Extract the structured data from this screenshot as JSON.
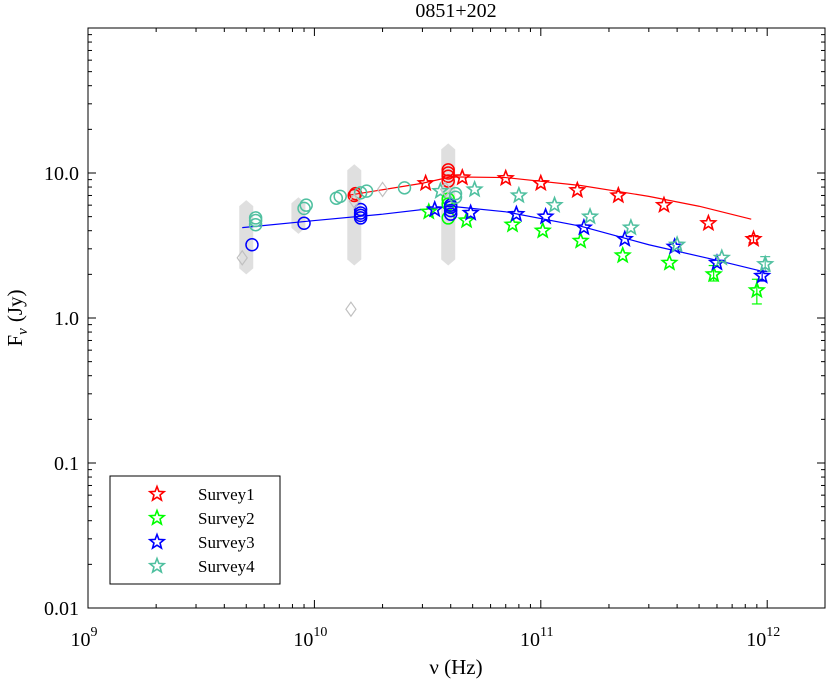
{
  "chart_data": {
    "type": "scatter",
    "title": "0851+202",
    "xlabel": "ν (Hz)",
    "ylabel": "F_ν (Jy)",
    "ylabel_main": "F",
    "ylabel_sub": "ν",
    "ylabel_unit": "(Jy)",
    "x_scale": "log",
    "y_scale": "log",
    "xlim": [
      1000000000.0,
      1800000000000.0
    ],
    "ylim": [
      0.01,
      100
    ],
    "x_ticks": [
      {
        "value": 1000000000.0,
        "base": "10",
        "exp": "9"
      },
      {
        "value": 10000000000.0,
        "base": "10",
        "exp": "10"
      },
      {
        "value": 100000000000.0,
        "base": "10",
        "exp": "11"
      },
      {
        "value": 1000000000000.0,
        "base": "10",
        "exp": "12"
      }
    ],
    "y_ticks": [
      {
        "value": 0.01,
        "label": "0.01"
      },
      {
        "value": 0.1,
        "label": "0.1"
      },
      {
        "value": 1,
        "label": "1.0"
      },
      {
        "value": 10,
        "label": "10.0"
      }
    ],
    "legend": {
      "position": "bottom-left",
      "entries": [
        {
          "name": "Survey1",
          "color": "#ff0000"
        },
        {
          "name": "Survey2",
          "color": "#00ff00"
        },
        {
          "name": "Survey3",
          "color": "#0000ff"
        },
        {
          "name": "Survey4",
          "color": "#50c0a0"
        }
      ]
    },
    "series": [
      {
        "name": "Survey1",
        "color": "#ff0000",
        "marker": "star",
        "points": [
          [
            31000000000.0,
            8.5
          ],
          [
            45000000000.0,
            9.3
          ],
          [
            70000000000.0,
            9.2
          ],
          [
            100000000000.0,
            8.5
          ],
          [
            145000000000.0,
            7.6
          ],
          [
            220000000000.0,
            7.0
          ],
          [
            350000000000.0,
            6.0
          ],
          [
            550000000000.0,
            4.5
          ],
          [
            870000000000.0,
            3.5
          ]
        ]
      },
      {
        "name": "Survey2",
        "color": "#00ff00",
        "marker": "star",
        "points": [
          [
            32000000000.0,
            5.4
          ],
          [
            47000000000.0,
            4.7
          ],
          [
            75000000000.0,
            4.4
          ],
          [
            102000000000.0,
            4.0
          ],
          [
            150000000000.0,
            3.4
          ],
          [
            230000000000.0,
            2.7
          ],
          [
            370000000000.0,
            2.4
          ],
          [
            580000000000.0,
            2.0
          ],
          [
            900000000000.0,
            1.55
          ]
        ]
      },
      {
        "name": "Survey3",
        "color": "#0000ff",
        "marker": "star",
        "points": [
          [
            34000000000.0,
            5.6
          ],
          [
            49000000000.0,
            5.3
          ],
          [
            78000000000.0,
            5.2
          ],
          [
            105000000000.0,
            5.0
          ],
          [
            155000000000.0,
            4.2
          ],
          [
            235000000000.0,
            3.5
          ],
          [
            390000000000.0,
            3.1
          ],
          [
            600000000000.0,
            2.4
          ],
          [
            950000000000.0,
            1.95
          ]
        ]
      },
      {
        "name": "Survey4",
        "color": "#50c0a0",
        "marker": "star",
        "points": [
          [
            36000000000.0,
            7.5
          ],
          [
            51000000000.0,
            7.7
          ],
          [
            80000000000.0,
            7.0
          ],
          [
            115000000000.0,
            6.0
          ],
          [
            165000000000.0,
            5.0
          ],
          [
            250000000000.0,
            4.2
          ],
          [
            400000000000.0,
            3.2
          ],
          [
            630000000000.0,
            2.6
          ],
          [
            980000000000.0,
            2.35
          ]
        ]
      },
      {
        "name": "Survey1 circles",
        "color": "#ff0000",
        "marker": "circle",
        "points": [
          [
            15000000000.0,
            7.0
          ],
          [
            15200000000.0,
            7.2
          ],
          [
            39000000000.0,
            8.8
          ],
          [
            39000000000.0,
            9.5
          ],
          [
            39000000000.0,
            10.0
          ],
          [
            39000000000.0,
            10.5
          ]
        ]
      },
      {
        "name": "Survey2 circles",
        "color": "#00ff00",
        "marker": "circle",
        "points": [
          [
            39000000000.0,
            4.9
          ],
          [
            39000000000.0,
            6.1
          ],
          [
            39000000000.0,
            6.6
          ]
        ]
      },
      {
        "name": "Survey3 circles",
        "color": "#0000ff",
        "marker": "circle",
        "points": [
          [
            5300000000.0,
            3.2
          ],
          [
            9000000000.0,
            4.5
          ],
          [
            16000000000.0,
            4.9
          ],
          [
            16000000000.0,
            5.1
          ],
          [
            16000000000.0,
            5.3
          ],
          [
            16000000000.0,
            5.6
          ],
          [
            40000000000.0,
            5.2
          ],
          [
            40000000000.0,
            5.5
          ],
          [
            40000000000.0,
            5.8
          ],
          [
            40000000000.0,
            6.0
          ]
        ]
      },
      {
        "name": "Survey4 circles",
        "color": "#50c0a0",
        "marker": "circle",
        "points": [
          [
            5500000000.0,
            4.4
          ],
          [
            5500000000.0,
            4.7
          ],
          [
            5500000000.0,
            4.9
          ],
          [
            9000000000.0,
            5.7
          ],
          [
            9200000000.0,
            6.0
          ],
          [
            12500000000.0,
            6.7
          ],
          [
            13000000000.0,
            6.9
          ],
          [
            16000000000.0,
            7.3
          ],
          [
            17000000000.0,
            7.5
          ],
          [
            25000000000.0,
            7.9
          ],
          [
            42000000000.0,
            6.8
          ],
          [
            42000000000.0,
            7.2
          ]
        ]
      },
      {
        "name": "Archival diamonds",
        "color": "#c0c0c0",
        "marker": "diamond",
        "points": [
          [
            4800000000.0,
            2.6
          ],
          [
            14500000000.0,
            1.15
          ],
          [
            20000000000.0,
            7.7
          ],
          [
            15000000000.0,
            6.4
          ],
          [
            38000000000.0,
            7.7
          ]
        ]
      }
    ],
    "error_bars": [
      {
        "x": 580000000000.0,
        "y": 2.0,
        "low": 1.8,
        "high": 2.3,
        "color": "#00ff00"
      },
      {
        "x": 900000000000.0,
        "y": 1.55,
        "low": 1.25,
        "high": 1.85,
        "color": "#00ff00"
      },
      {
        "x": 980000000000.0,
        "y": 2.35,
        "low": 2.1,
        "high": 2.65,
        "color": "#50c0a0"
      },
      {
        "x": 950000000000.0,
        "y": 1.95,
        "low": 1.8,
        "high": 2.1,
        "color": "#0000ff"
      },
      {
        "x": 870000000000.0,
        "y": 3.5,
        "low": 3.3,
        "high": 3.7,
        "color": "#ff0000"
      }
    ],
    "fit_lines": [
      {
        "name": "Survey1 fit",
        "color": "#ff0000",
        "points": [
          [
            14000000000.0,
            7.0
          ],
          [
            30000000000.0,
            8.5
          ],
          [
            40000000000.0,
            9.4
          ],
          [
            70000000000.0,
            9.3
          ],
          [
            150000000000.0,
            8.2
          ],
          [
            300000000000.0,
            6.9
          ],
          [
            500000000000.0,
            5.9
          ],
          [
            850000000000.0,
            4.8
          ]
        ]
      },
      {
        "name": "Survey3 fit",
        "color": "#0000ff",
        "points": [
          [
            4800000000.0,
            4.2
          ],
          [
            10000000000.0,
            4.7
          ],
          [
            20000000000.0,
            5.2
          ],
          [
            40000000000.0,
            5.9
          ],
          [
            70000000000.0,
            5.4
          ],
          [
            150000000000.0,
            4.3
          ],
          [
            300000000000.0,
            3.2
          ],
          [
            600000000000.0,
            2.5
          ],
          [
            950000000000.0,
            2.1
          ]
        ]
      }
    ],
    "gray_bands": [
      {
        "x": 5000000000.0,
        "low": 2.0,
        "high": 6.5
      },
      {
        "x": 8500000000.0,
        "low": 3.8,
        "high": 6.8
      },
      {
        "x": 15000000000.0,
        "low": 2.3,
        "high": 11.5
      },
      {
        "x": 39000000000.0,
        "low": 2.3,
        "high": 16.0
      }
    ]
  }
}
